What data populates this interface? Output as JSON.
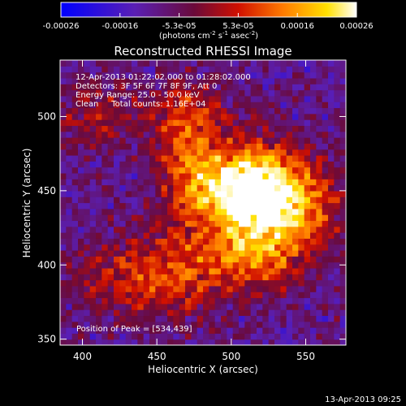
{
  "chart_data": {
    "type": "heatmap",
    "title": "Reconstructed RHESSI Image",
    "xlabel": "Heliocentric X (arcsec)",
    "ylabel": "Heliocentric Y (arcsec)",
    "xlim": [
      385,
      577
    ],
    "ylim": [
      346,
      538
    ],
    "x_ticks": [
      400,
      450,
      500,
      550
    ],
    "y_ticks": [
      350,
      400,
      450,
      500
    ],
    "colorbar": {
      "colormap": "blue-purple-red-yellow-white",
      "range": [
        -0.00026,
        0.00026
      ],
      "tick_labels": [
        "-0.00026",
        "-0.00016",
        "-5.3e-05",
        "5.3e-05",
        "0.00016",
        "0.00026"
      ],
      "label_prefix": "(photons cm",
      "label_sup1": "-2",
      "label_mid1": " s",
      "label_sup2": "-1",
      "label_mid2": " asec",
      "label_sup3": "-2",
      "label_suffix": ")"
    },
    "annotations": [
      "12-Apr-2013 01:22:02.000 to 01:28:02.000",
      "Detectors: 3F 5F 6F 7F 8F 9F, Att 0",
      "Energy Range: 25.0 - 50.0 keV",
      "Clean     Total counts: 1.16E+04"
    ],
    "peak_label": "Position of Peak = [534,439]",
    "peak_position": [
      534,
      439
    ],
    "sources": [
      {
        "x": 528,
        "y": 442,
        "amp": 1.0,
        "sx": 28,
        "sy": 22
      },
      {
        "x": 505,
        "y": 455,
        "amp": 0.7,
        "sx": 22,
        "sy": 20
      },
      {
        "x": 448,
        "y": 392,
        "amp": 0.55,
        "sx": 35,
        "sy": 20
      },
      {
        "x": 470,
        "y": 470,
        "amp": 0.45,
        "sx": 15,
        "sy": 30
      },
      {
        "x": 515,
        "y": 405,
        "amp": 0.45,
        "sx": 25,
        "sy": 15
      },
      {
        "x": 410,
        "y": 500,
        "amp": 0.35,
        "sx": 20,
        "sy": 15
      },
      {
        "x": 470,
        "y": 505,
        "amp": 0.3,
        "sx": 20,
        "sy": 12
      }
    ]
  },
  "footer": {
    "timestamp": "13-Apr-2013 09:25"
  }
}
